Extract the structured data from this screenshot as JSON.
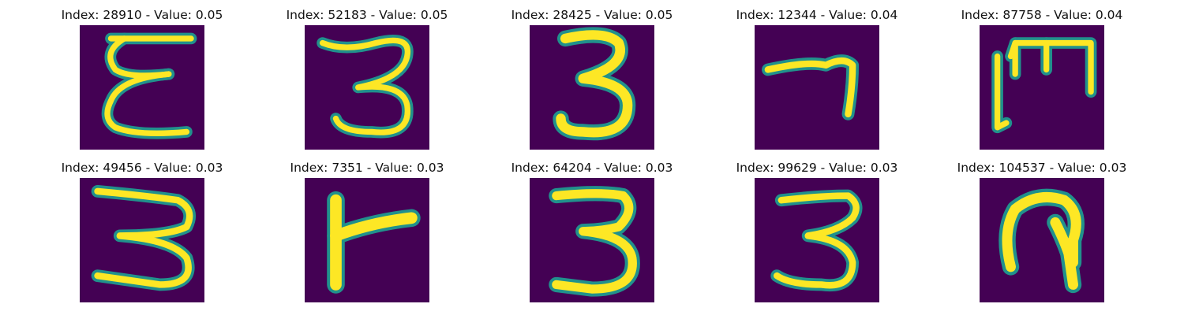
{
  "colors": {
    "background": "#440154",
    "stroke_outer": "#21918c",
    "stroke_mid": "#5ec962",
    "stroke_inner": "#fde725"
  },
  "panels": [
    {
      "title": "Index: 28910 - Value: 0.05",
      "glyph": "epsilon-like"
    },
    {
      "title": "Index: 52183 - Value: 0.05",
      "glyph": "three"
    },
    {
      "title": "Index: 28425 - Value: 0.05",
      "glyph": "three-bold"
    },
    {
      "title": "Index: 12344 - Value: 0.04",
      "glyph": "seven-like"
    },
    {
      "title": "Index: 87758 - Value: 0.04",
      "glyph": "m-like"
    },
    {
      "title": "Index: 49456 - Value: 0.03",
      "glyph": "three-wide"
    },
    {
      "title": "Index: 7351 - Value: 0.03",
      "glyph": "t-like"
    },
    {
      "title": "Index: 64204 - Value: 0.03",
      "glyph": "three-bold"
    },
    {
      "title": "Index: 99629 - Value: 0.03",
      "glyph": "three"
    },
    {
      "title": "Index: 104537 - Value: 0.03",
      "glyph": "loop-like"
    }
  ]
}
